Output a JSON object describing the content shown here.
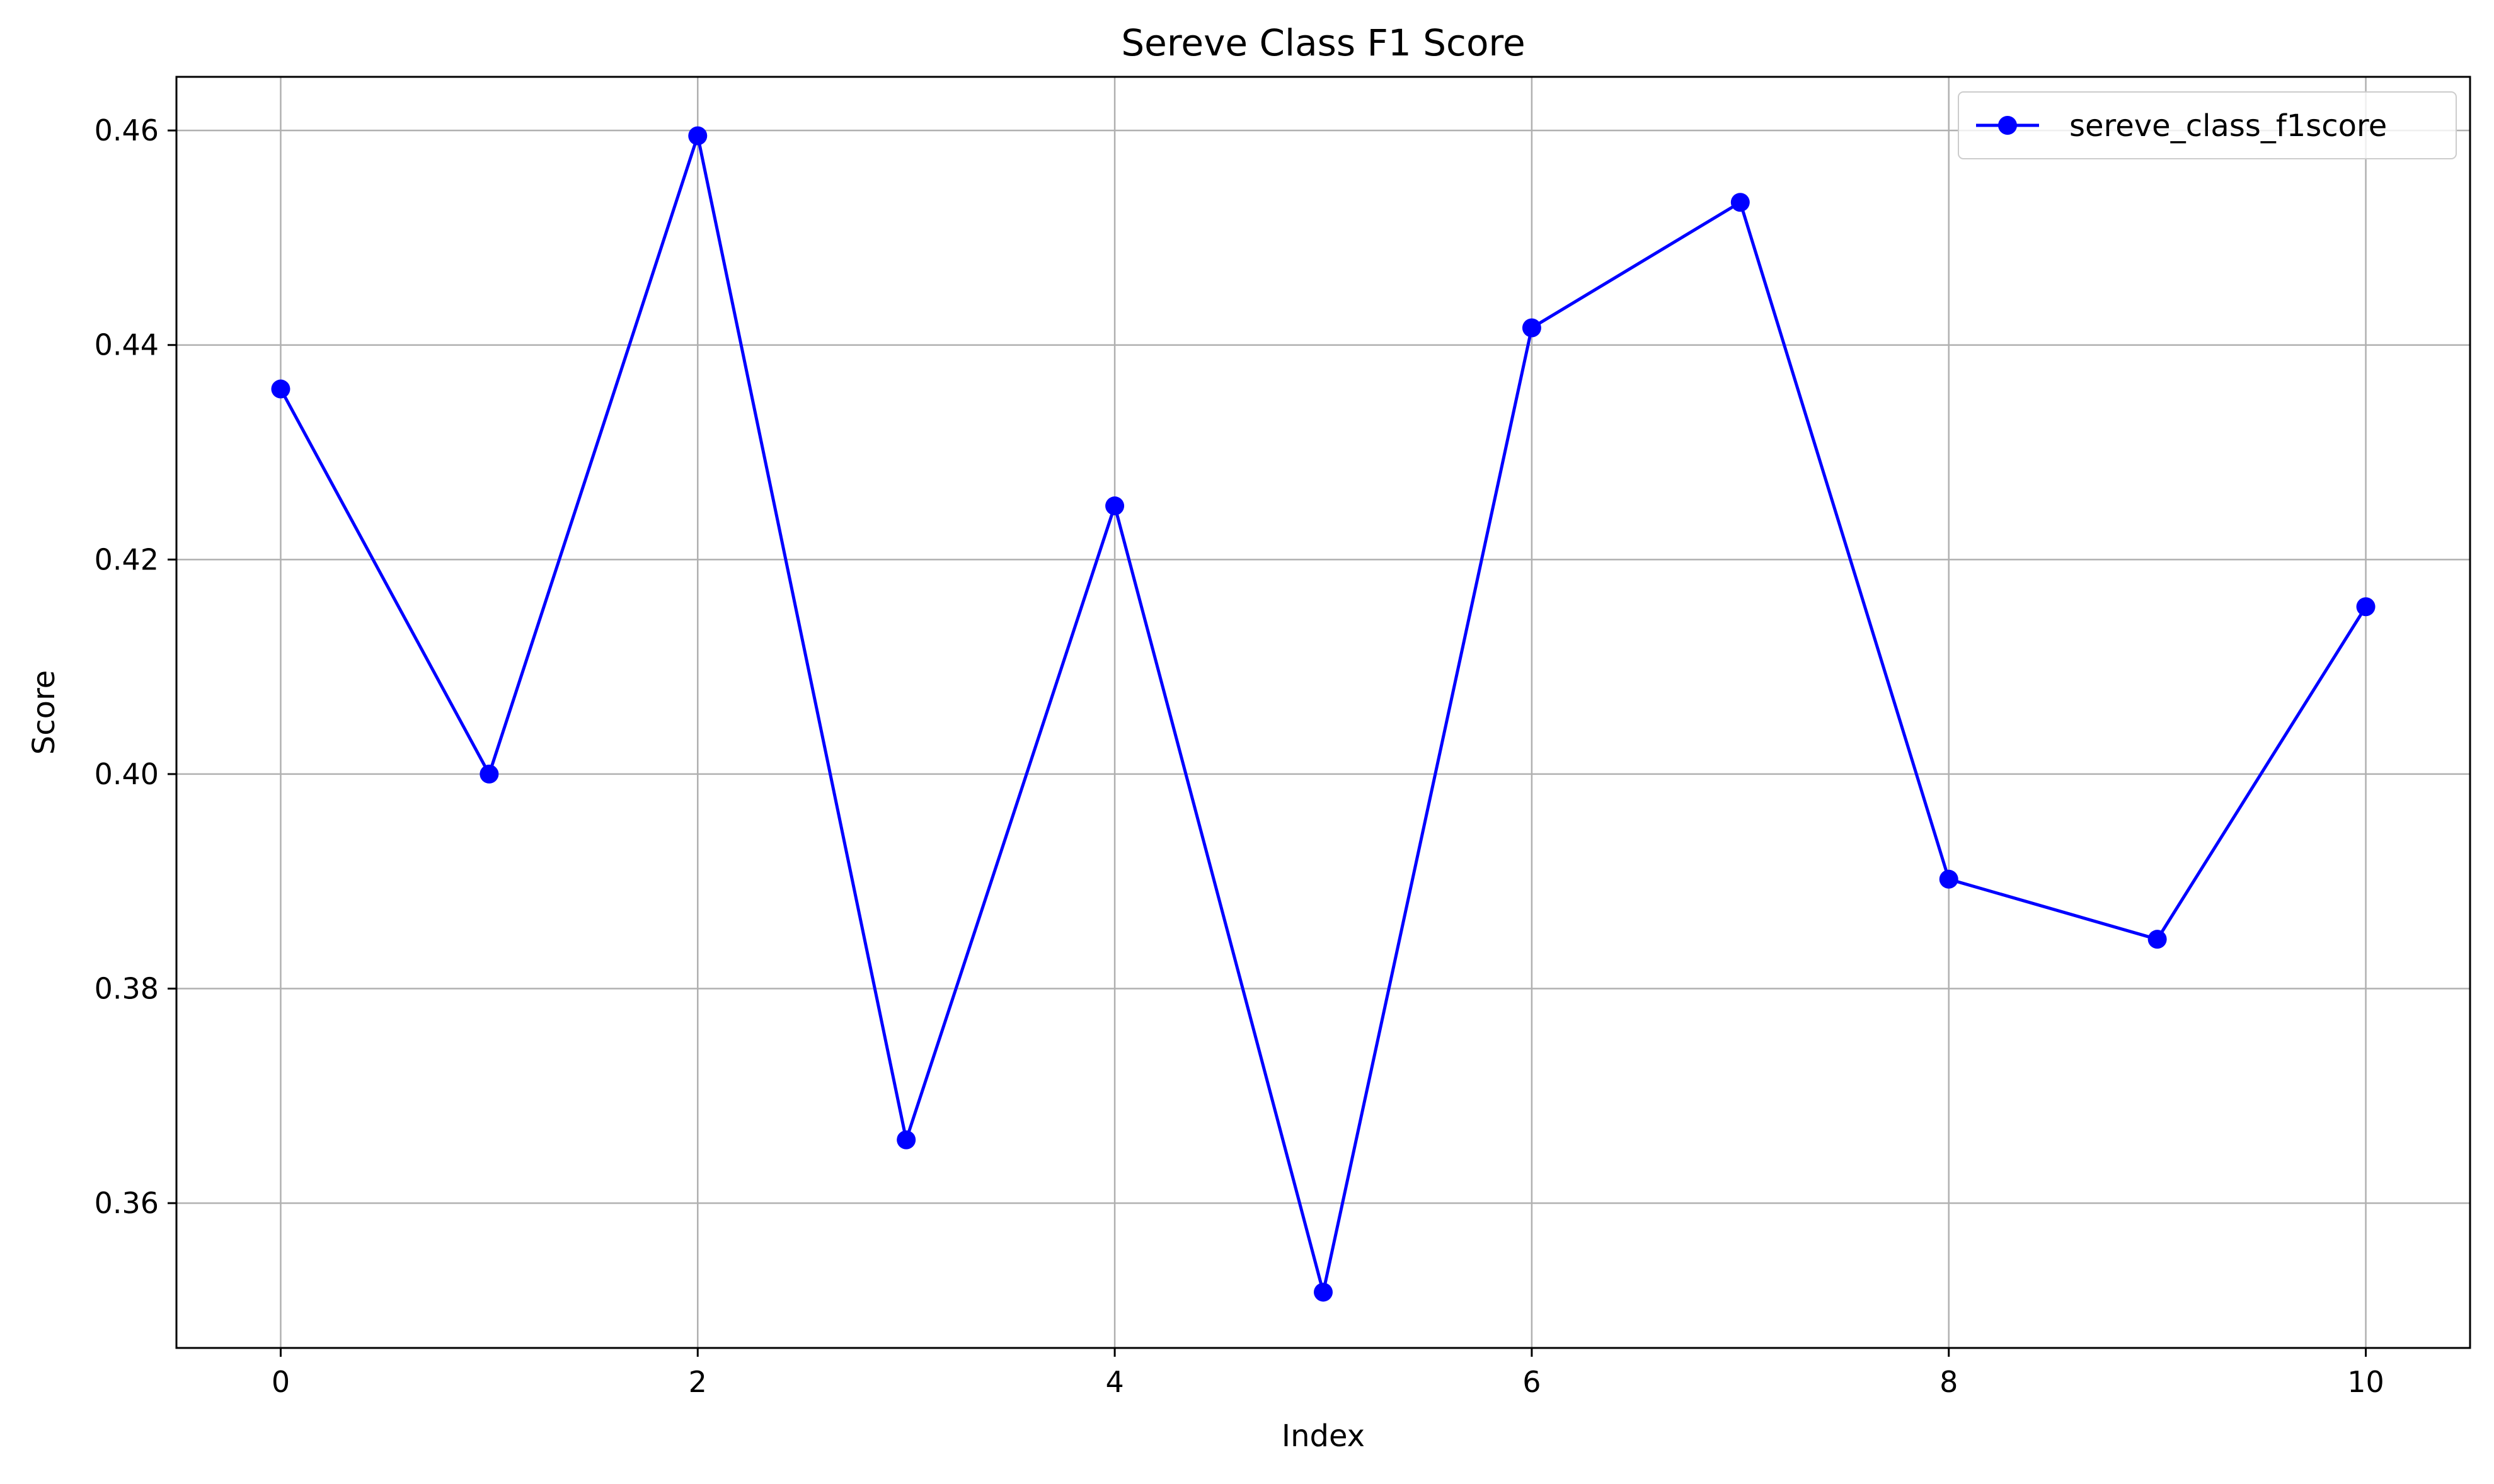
{
  "chart_data": {
    "type": "line",
    "title": "Sereve Class F1 Score",
    "xlabel": "Index",
    "ylabel": "Score",
    "x": [
      0,
      1,
      2,
      3,
      4,
      5,
      6,
      7,
      8,
      9,
      10
    ],
    "series": [
      {
        "name": "sereve_class_f1score",
        "color": "#0000ff",
        "marker": "circle",
        "values": [
          0.4359,
          0.4,
          0.4595,
          0.3659,
          0.425,
          0.3517,
          0.4416,
          0.4533,
          0.3902,
          0.3846,
          0.4156
        ]
      }
    ],
    "xlim": [
      -0.5,
      10.5
    ],
    "ylim": [
      0.3465,
      0.465
    ],
    "xticks": [
      0,
      2,
      4,
      6,
      8,
      10
    ],
    "xtick_labels": [
      "0",
      "2",
      "4",
      "6",
      "8",
      "10"
    ],
    "yticks": [
      0.36,
      0.38,
      0.4,
      0.42,
      0.44,
      0.46
    ],
    "ytick_labels": [
      "0.36",
      "0.38",
      "0.40",
      "0.42",
      "0.44",
      "0.46"
    ],
    "grid": true,
    "legend_position": "top-right"
  }
}
